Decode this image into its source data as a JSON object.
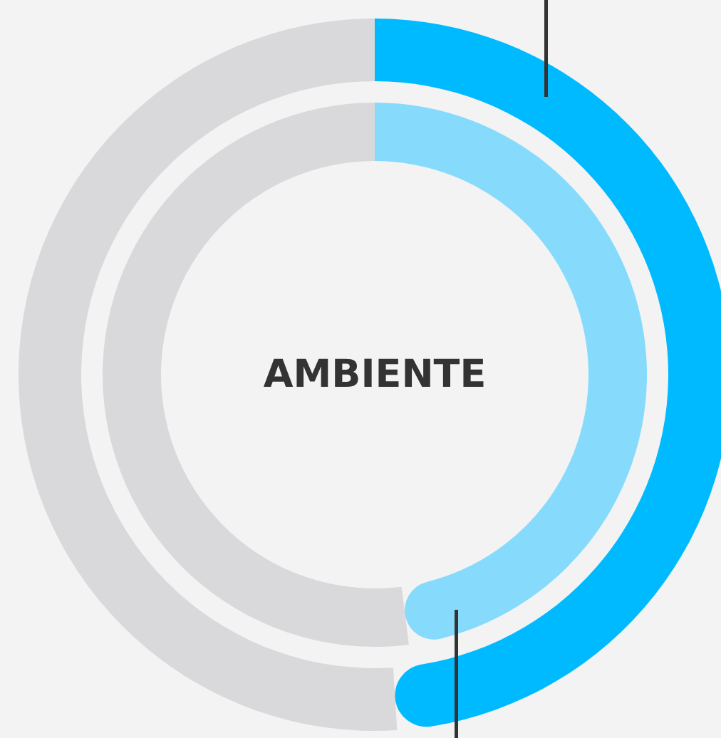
{
  "chart_data": [
    {
      "type": "donut",
      "title": "AMBIENTE",
      "categories": [
        null,
        null
      ],
      "values": [
        49,
        51
      ],
      "colors": [
        "#00baff",
        "#d9d9db"
      ]
    },
    {
      "type": "donut",
      "categories": [
        null,
        null
      ],
      "values": [
        48,
        52
      ],
      "colors": [
        "#86dbfd",
        "#d9d9db"
      ]
    }
  ]
}
